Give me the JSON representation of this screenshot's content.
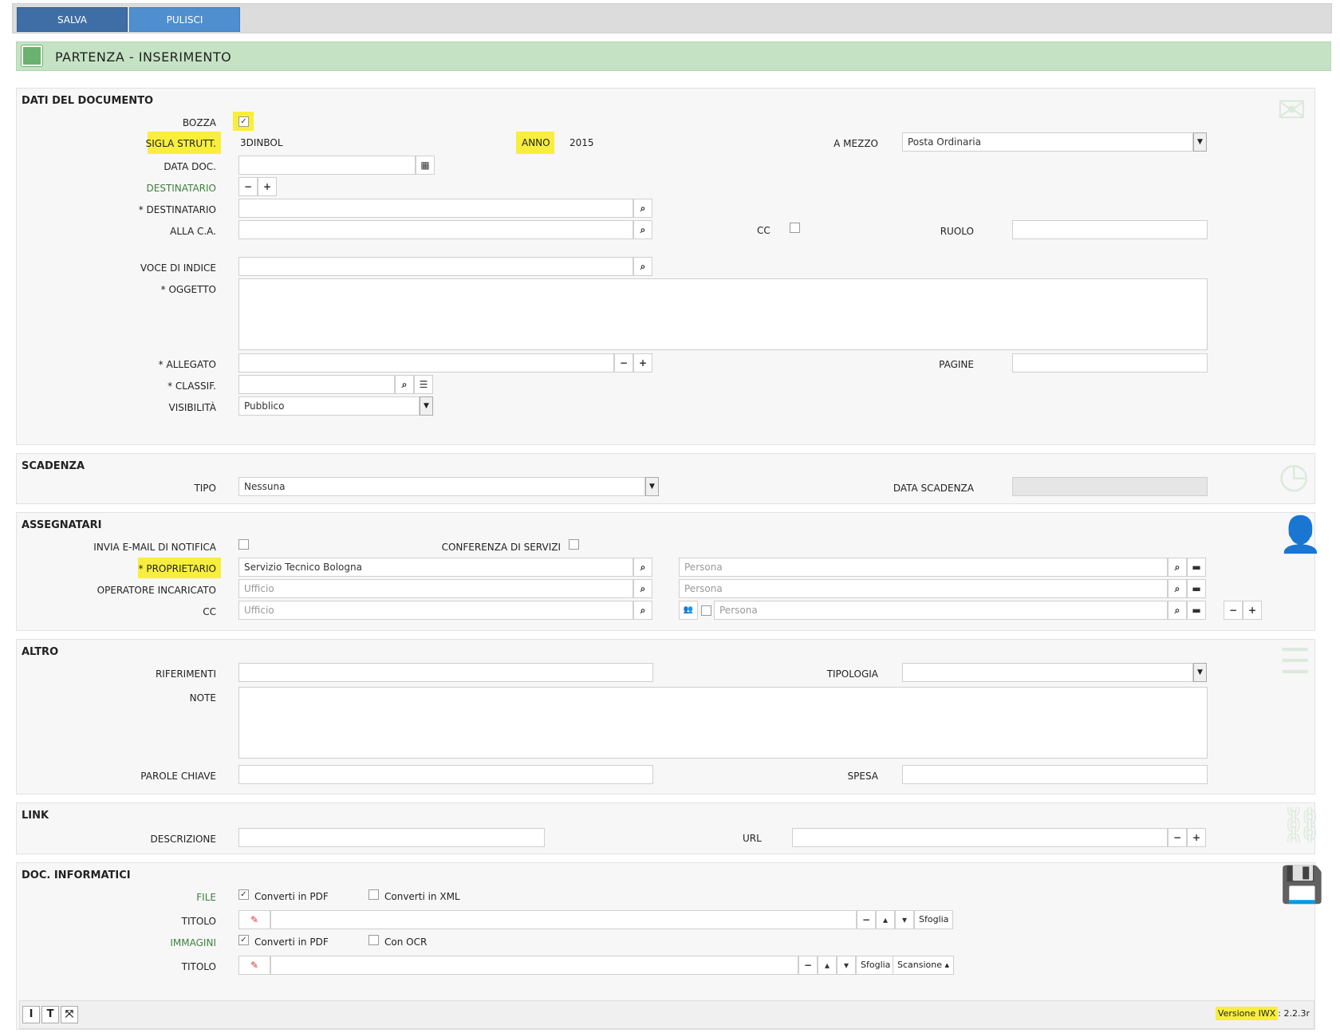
{
  "toolbar": {
    "save_label": "SALVA",
    "clear_label": "PULISCI"
  },
  "page_title": "PARTENZA - INSERIMENTO",
  "doc": {
    "section_title": "DATI DEL DOCUMENTO",
    "bozza_label": "BOZZA",
    "sigla_label": "SIGLA STRUTT.",
    "sigla_value": "3DINBOL",
    "anno_label": "ANNO",
    "anno_value": "2015",
    "mezzo_label": "A MEZZO",
    "mezzo_value": "Posta Ordinaria",
    "data_doc_label": "DATA DOC.",
    "destinatario_group_label": "DESTINATARIO",
    "destinatario_label": "* DESTINATARIO",
    "alla_ca_label": "ALLA C.A.",
    "cc_label": "CC",
    "ruolo_label": "RUOLO",
    "voce_label": "VOCE DI INDICE",
    "oggetto_label": "* OGGETTO",
    "allegato_label": "* ALLEGATO",
    "pagine_label": "PAGINE",
    "classif_label": "* CLASSIF.",
    "visibilita_label": "VISIBILITÀ",
    "visibilita_value": "Pubblico"
  },
  "scadenza": {
    "section_title": "SCADENZA",
    "tipo_label": "TIPO",
    "tipo_value": "Nessuna",
    "data_label": "DATA SCADENZA"
  },
  "assegnatari": {
    "section_title": "ASSEGNATARI",
    "email_label": "INVIA E-MAIL DI NOTIFICA",
    "conferenza_label": "CONFERENZA DI SERVIZI",
    "proprietario_label": "* PROPRIETARIO",
    "proprietario_value": "Servizio Tecnico Bologna",
    "persona_placeholder": "Persona",
    "operatore_label": "OPERATORE INCARICATO",
    "ufficio_placeholder": "Ufficio",
    "cc_label": "CC"
  },
  "altro": {
    "section_title": "ALTRO",
    "riferimenti_label": "RIFERIMENTI",
    "tipologia_label": "TIPOLOGIA",
    "note_label": "NOTE",
    "parole_label": "PAROLE CHIAVE",
    "spesa_label": "SPESA"
  },
  "link": {
    "section_title": "LINK",
    "descrizione_label": "DESCRIZIONE",
    "url_label": "URL"
  },
  "docinf": {
    "section_title": "DOC. INFORMATICI",
    "file_label": "FILE",
    "converti_pdf_label": "Converti in PDF",
    "converti_xml_label": "Converti in XML",
    "titolo_label": "TITOLO",
    "immagini_label": "IMMAGINI",
    "con_ocr_label": "Con OCR",
    "sfoglia_label": "Sfoglia",
    "scansione_label": "Scansione ▴"
  },
  "footer": {
    "version_label": "Versione IWX",
    "version_value": ": 2.2.3r"
  },
  "colors": {
    "title_bg": "#c5e3c4",
    "highlight": "#f8ee3c",
    "save_btn": "#3f6ea6",
    "clear_btn": "#4f8fd0",
    "green_label": "#3d7f3e"
  }
}
